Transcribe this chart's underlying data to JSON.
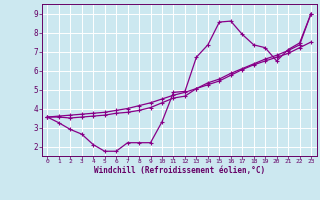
{
  "xlabel": "Windchill (Refroidissement éolien,°C)",
  "bg_color": "#cce8f0",
  "grid_color": "#b0d8e8",
  "line_color": "#880088",
  "xlim": [
    -0.5,
    23.5
  ],
  "ylim": [
    1.5,
    9.5
  ],
  "yticks": [
    2,
    3,
    4,
    5,
    6,
    7,
    8,
    9
  ],
  "xticks": [
    0,
    1,
    2,
    3,
    4,
    5,
    6,
    7,
    8,
    9,
    10,
    11,
    12,
    13,
    14,
    15,
    16,
    17,
    18,
    19,
    20,
    21,
    22,
    23
  ],
  "curve1_x": [
    0,
    1,
    2,
    3,
    4,
    5,
    6,
    7,
    8,
    9,
    10,
    11,
    12,
    13,
    14,
    15,
    16,
    17,
    18,
    19,
    20,
    21,
    22,
    23
  ],
  "curve1_y": [
    3.55,
    3.25,
    2.9,
    2.65,
    2.1,
    1.75,
    1.75,
    2.2,
    2.2,
    2.2,
    3.3,
    4.85,
    4.9,
    6.7,
    7.35,
    8.55,
    8.6,
    7.9,
    7.35,
    7.2,
    6.5,
    7.1,
    7.45,
    9.0
  ],
  "curve2_x": [
    0,
    1,
    2,
    3,
    4,
    5,
    6,
    7,
    8,
    9,
    10,
    11,
    12,
    13,
    14,
    15,
    16,
    17,
    18,
    19,
    20,
    21,
    22,
    23
  ],
  "curve2_y": [
    3.55,
    3.6,
    3.65,
    3.7,
    3.75,
    3.8,
    3.9,
    4.0,
    4.15,
    4.3,
    4.5,
    4.7,
    4.85,
    5.05,
    5.25,
    5.45,
    5.75,
    6.05,
    6.3,
    6.5,
    6.7,
    6.9,
    7.2,
    7.5
  ],
  "curve3_x": [
    0,
    1,
    2,
    3,
    4,
    5,
    6,
    7,
    8,
    9,
    10,
    11,
    12,
    13,
    14,
    15,
    16,
    17,
    18,
    19,
    20,
    21,
    22,
    23
  ],
  "curve3_y": [
    3.55,
    3.55,
    3.5,
    3.55,
    3.6,
    3.65,
    3.75,
    3.8,
    3.9,
    4.05,
    4.3,
    4.55,
    4.65,
    5.05,
    5.35,
    5.55,
    5.85,
    6.1,
    6.35,
    6.6,
    6.8,
    7.05,
    7.35,
    9.0
  ],
  "marker": "+",
  "markersize": 3,
  "linewidth": 0.9
}
